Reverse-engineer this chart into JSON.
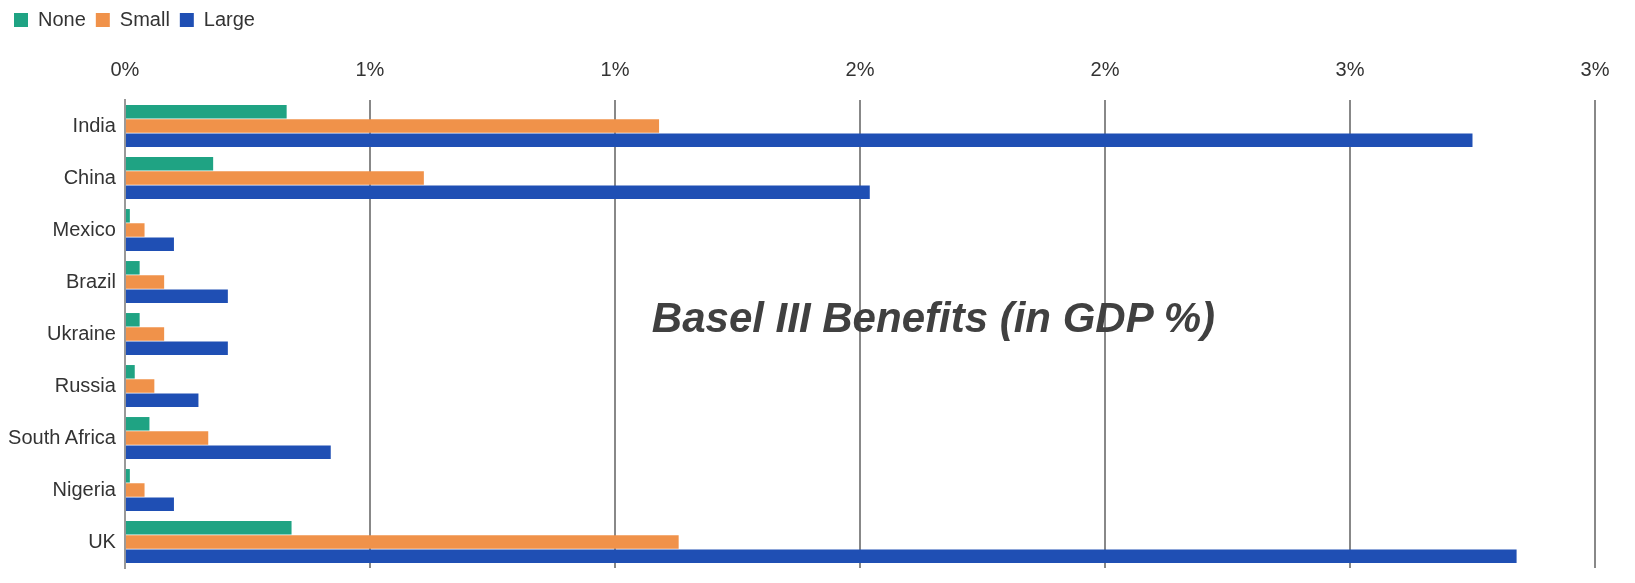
{
  "chart_data": {
    "type": "bar",
    "orientation": "horizontal",
    "title": "Basel III Benefits (in GDP %)",
    "categories": [
      "India",
      "China",
      "Mexico",
      "Brazil",
      "Ukraine",
      "Russia",
      "South Africa",
      "Nigeria",
      "UK"
    ],
    "series": [
      {
        "name": "None",
        "color": "#1fa383",
        "values": [
          0.33,
          0.18,
          0.01,
          0.03,
          0.03,
          0.02,
          0.05,
          0.01,
          0.34
        ]
      },
      {
        "name": "Small",
        "color": "#f0924a",
        "values": [
          1.09,
          0.61,
          0.04,
          0.08,
          0.08,
          0.06,
          0.17,
          0.04,
          1.13
        ]
      },
      {
        "name": "Large",
        "color": "#1f4fb4",
        "values": [
          2.75,
          1.52,
          0.1,
          0.21,
          0.21,
          0.15,
          0.42,
          0.1,
          2.84
        ]
      }
    ],
    "xlim": [
      0,
      3
    ],
    "xticks": [
      {
        "value": 0,
        "label": "0%"
      },
      {
        "value": 0.5,
        "label": "1%"
      },
      {
        "value": 1,
        "label": "1%"
      },
      {
        "value": 1.5,
        "label": "2%"
      },
      {
        "value": 2,
        "label": "2%"
      },
      {
        "value": 2.5,
        "label": "3%"
      },
      {
        "value": 3,
        "label": "3%"
      }
    ],
    "grid": "x",
    "legend": "top left"
  }
}
